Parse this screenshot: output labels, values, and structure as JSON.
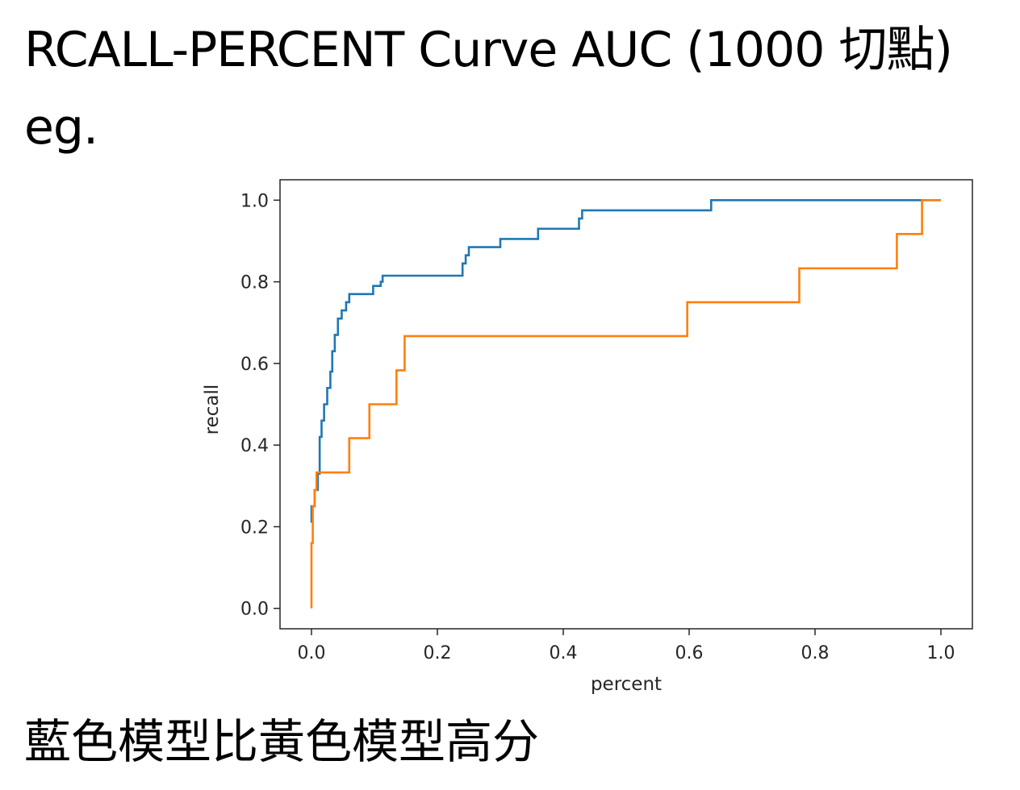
{
  "heading": {
    "line1": "RCALL-PERCENT Curve AUC (1000 切點)",
    "line2": "eg."
  },
  "caption": "藍色模型比黃色模型高分",
  "colors": {
    "series_blue": "#1f77b4",
    "series_orange": "#ff7f0e",
    "axes": "#262626",
    "text": "#000000",
    "background": "#ffffff"
  },
  "chart_data": {
    "type": "line",
    "title": "",
    "xlabel": "percent",
    "ylabel": "recall",
    "xlim": [
      -0.05,
      1.05
    ],
    "ylim": [
      -0.05,
      1.05
    ],
    "xticks": [
      "0.0",
      "0.2",
      "0.4",
      "0.6",
      "0.8",
      "1.0"
    ],
    "yticks": [
      "0.0",
      "0.2",
      "0.4",
      "0.6",
      "0.8",
      "1.0"
    ],
    "grid": false,
    "legend": "none",
    "series": [
      {
        "color": "#1f77b4",
        "x": [
          0.0,
          0.0,
          0.005,
          0.005,
          0.01,
          0.01,
          0.013,
          0.013,
          0.016,
          0.016,
          0.02,
          0.02,
          0.025,
          0.025,
          0.03,
          0.03,
          0.033,
          0.033,
          0.037,
          0.037,
          0.042,
          0.042,
          0.048,
          0.048,
          0.055,
          0.055,
          0.06,
          0.06,
          0.098,
          0.098,
          0.11,
          0.11,
          0.113,
          0.113,
          0.24,
          0.24,
          0.245,
          0.245,
          0.25,
          0.25,
          0.3,
          0.3,
          0.36,
          0.36,
          0.425,
          0.425,
          0.43,
          0.43,
          0.635,
          0.635,
          1.0
        ],
        "y": [
          0.21,
          0.25,
          0.25,
          0.29,
          0.29,
          0.33,
          0.33,
          0.42,
          0.42,
          0.46,
          0.46,
          0.5,
          0.5,
          0.54,
          0.54,
          0.58,
          0.58,
          0.63,
          0.63,
          0.67,
          0.67,
          0.71,
          0.71,
          0.73,
          0.73,
          0.75,
          0.75,
          0.77,
          0.77,
          0.79,
          0.79,
          0.8,
          0.8,
          0.815,
          0.815,
          0.845,
          0.845,
          0.865,
          0.865,
          0.885,
          0.885,
          0.905,
          0.905,
          0.93,
          0.93,
          0.955,
          0.955,
          0.975,
          0.975,
          1.0,
          1.0
        ]
      },
      {
        "color": "#ff7f0e",
        "x": [
          0.0,
          0.0,
          0.002,
          0.002,
          0.005,
          0.005,
          0.008,
          0.008,
          0.06,
          0.06,
          0.092,
          0.092,
          0.135,
          0.135,
          0.148,
          0.148,
          0.597,
          0.597,
          0.775,
          0.775,
          0.93,
          0.93,
          0.97,
          0.97,
          1.0
        ],
        "y": [
          0.0,
          0.16,
          0.16,
          0.25,
          0.25,
          0.29,
          0.29,
          0.333,
          0.333,
          0.417,
          0.417,
          0.5,
          0.5,
          0.583,
          0.583,
          0.667,
          0.667,
          0.75,
          0.75,
          0.833,
          0.833,
          0.917,
          0.917,
          1.0,
          1.0
        ]
      }
    ]
  }
}
